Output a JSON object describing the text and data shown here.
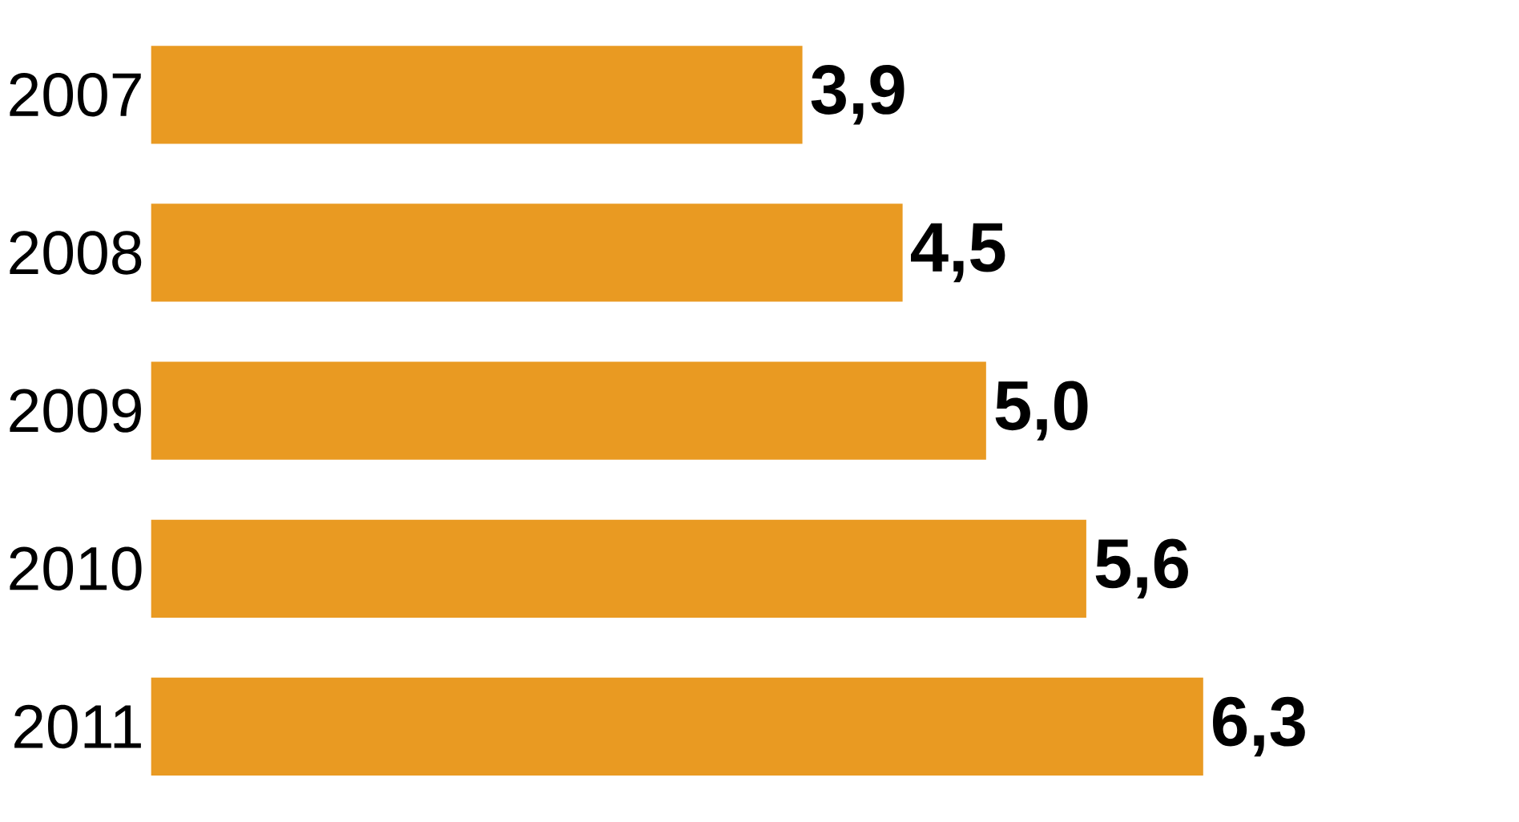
{
  "chart_data": {
    "type": "bar",
    "orientation": "horizontal",
    "categories": [
      "2007",
      "2008",
      "2009",
      "2010",
      "2011"
    ],
    "values": [
      3.9,
      4.5,
      5.0,
      5.6,
      6.3
    ],
    "value_labels": [
      "3,9",
      "4,5",
      "5,0",
      "5,6",
      "6,3"
    ],
    "color": "#e99a22"
  }
}
